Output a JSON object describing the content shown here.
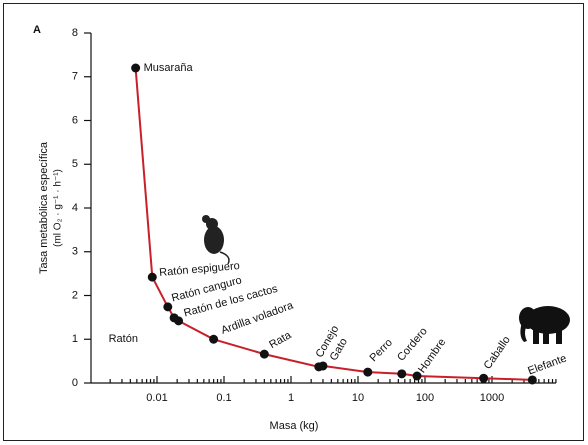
{
  "chart_data": {
    "type": "scatter",
    "panel_label": "A",
    "xlabel": "Masa (kg)",
    "ylabel": [
      "Tasa metabólica específica",
      "(ml O₂ · g⁻¹ · h⁻¹)"
    ],
    "labels": [
      "Musaraña",
      "Ratón espiguero",
      "Ratón canguro",
      "Ratón de los cactos",
      "Ratón",
      "Ardilla voladora",
      "Rata",
      "Conejo",
      "Gato",
      "Perro",
      "Cordero",
      "Hombre",
      "Caballo",
      "Elefante"
    ],
    "x": [
      0.0048,
      0.0085,
      0.0145,
      0.018,
      0.021,
      0.07,
      0.4,
      2.6,
      3.0,
      14,
      45,
      76,
      750,
      4000
    ],
    "values": [
      7.2,
      2.42,
      1.74,
      1.49,
      1.42,
      1.0,
      0.66,
      0.37,
      0.39,
      0.25,
      0.21,
      0.16,
      0.11,
      0.07
    ],
    "xscale": "log",
    "xlim": [
      0.001,
      10000
    ],
    "xticks": [
      0.01,
      0.1,
      1,
      10,
      100,
      1000
    ],
    "ylim": [
      0,
      8
    ],
    "yticks": [
      0,
      1,
      2,
      3,
      4,
      5,
      6,
      7,
      8
    ],
    "curve_color": "#c8202a",
    "point_color": "#111111"
  }
}
